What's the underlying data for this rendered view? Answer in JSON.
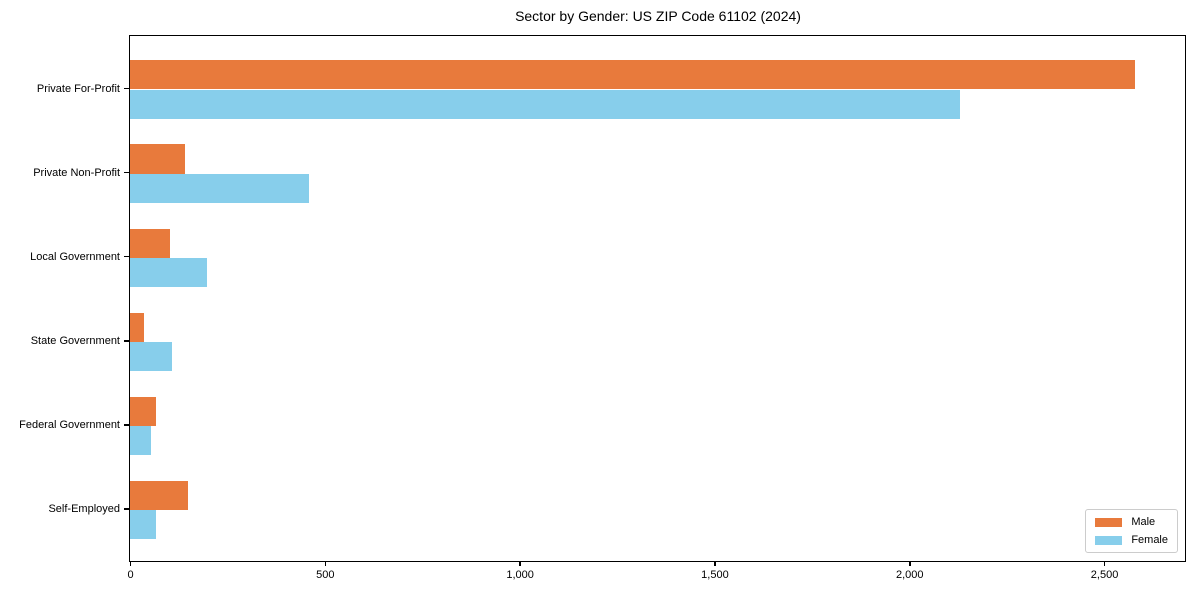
{
  "title": "Sector by Gender: US ZIP Code 61102 (2024)",
  "chart_data": {
    "type": "bar",
    "orientation": "horizontal",
    "title": "Sector by Gender: US ZIP Code 61102 (2024)",
    "categories": [
      "Private For-Profit",
      "Private Non-Profit",
      "Local Government",
      "State Government",
      "Federal Government",
      "Self-Employed"
    ],
    "series": [
      {
        "name": "Male",
        "color": "#E87A3C",
        "values": [
          2580,
          142,
          103,
          36,
          68,
          148
        ]
      },
      {
        "name": "Female",
        "color": "#87CEEB",
        "values": [
          2130,
          460,
          198,
          108,
          55,
          66
        ]
      }
    ],
    "xlabel": "",
    "ylabel": "",
    "xlim": [
      0,
      2709
    ],
    "xticks": {
      "values": [
        0,
        500,
        1000,
        1500,
        2000,
        2500
      ],
      "labels": [
        "0",
        "500",
        "1,000",
        "1,500",
        "2,000",
        "2,500"
      ]
    },
    "grid": false,
    "legend_position": "lower right"
  }
}
